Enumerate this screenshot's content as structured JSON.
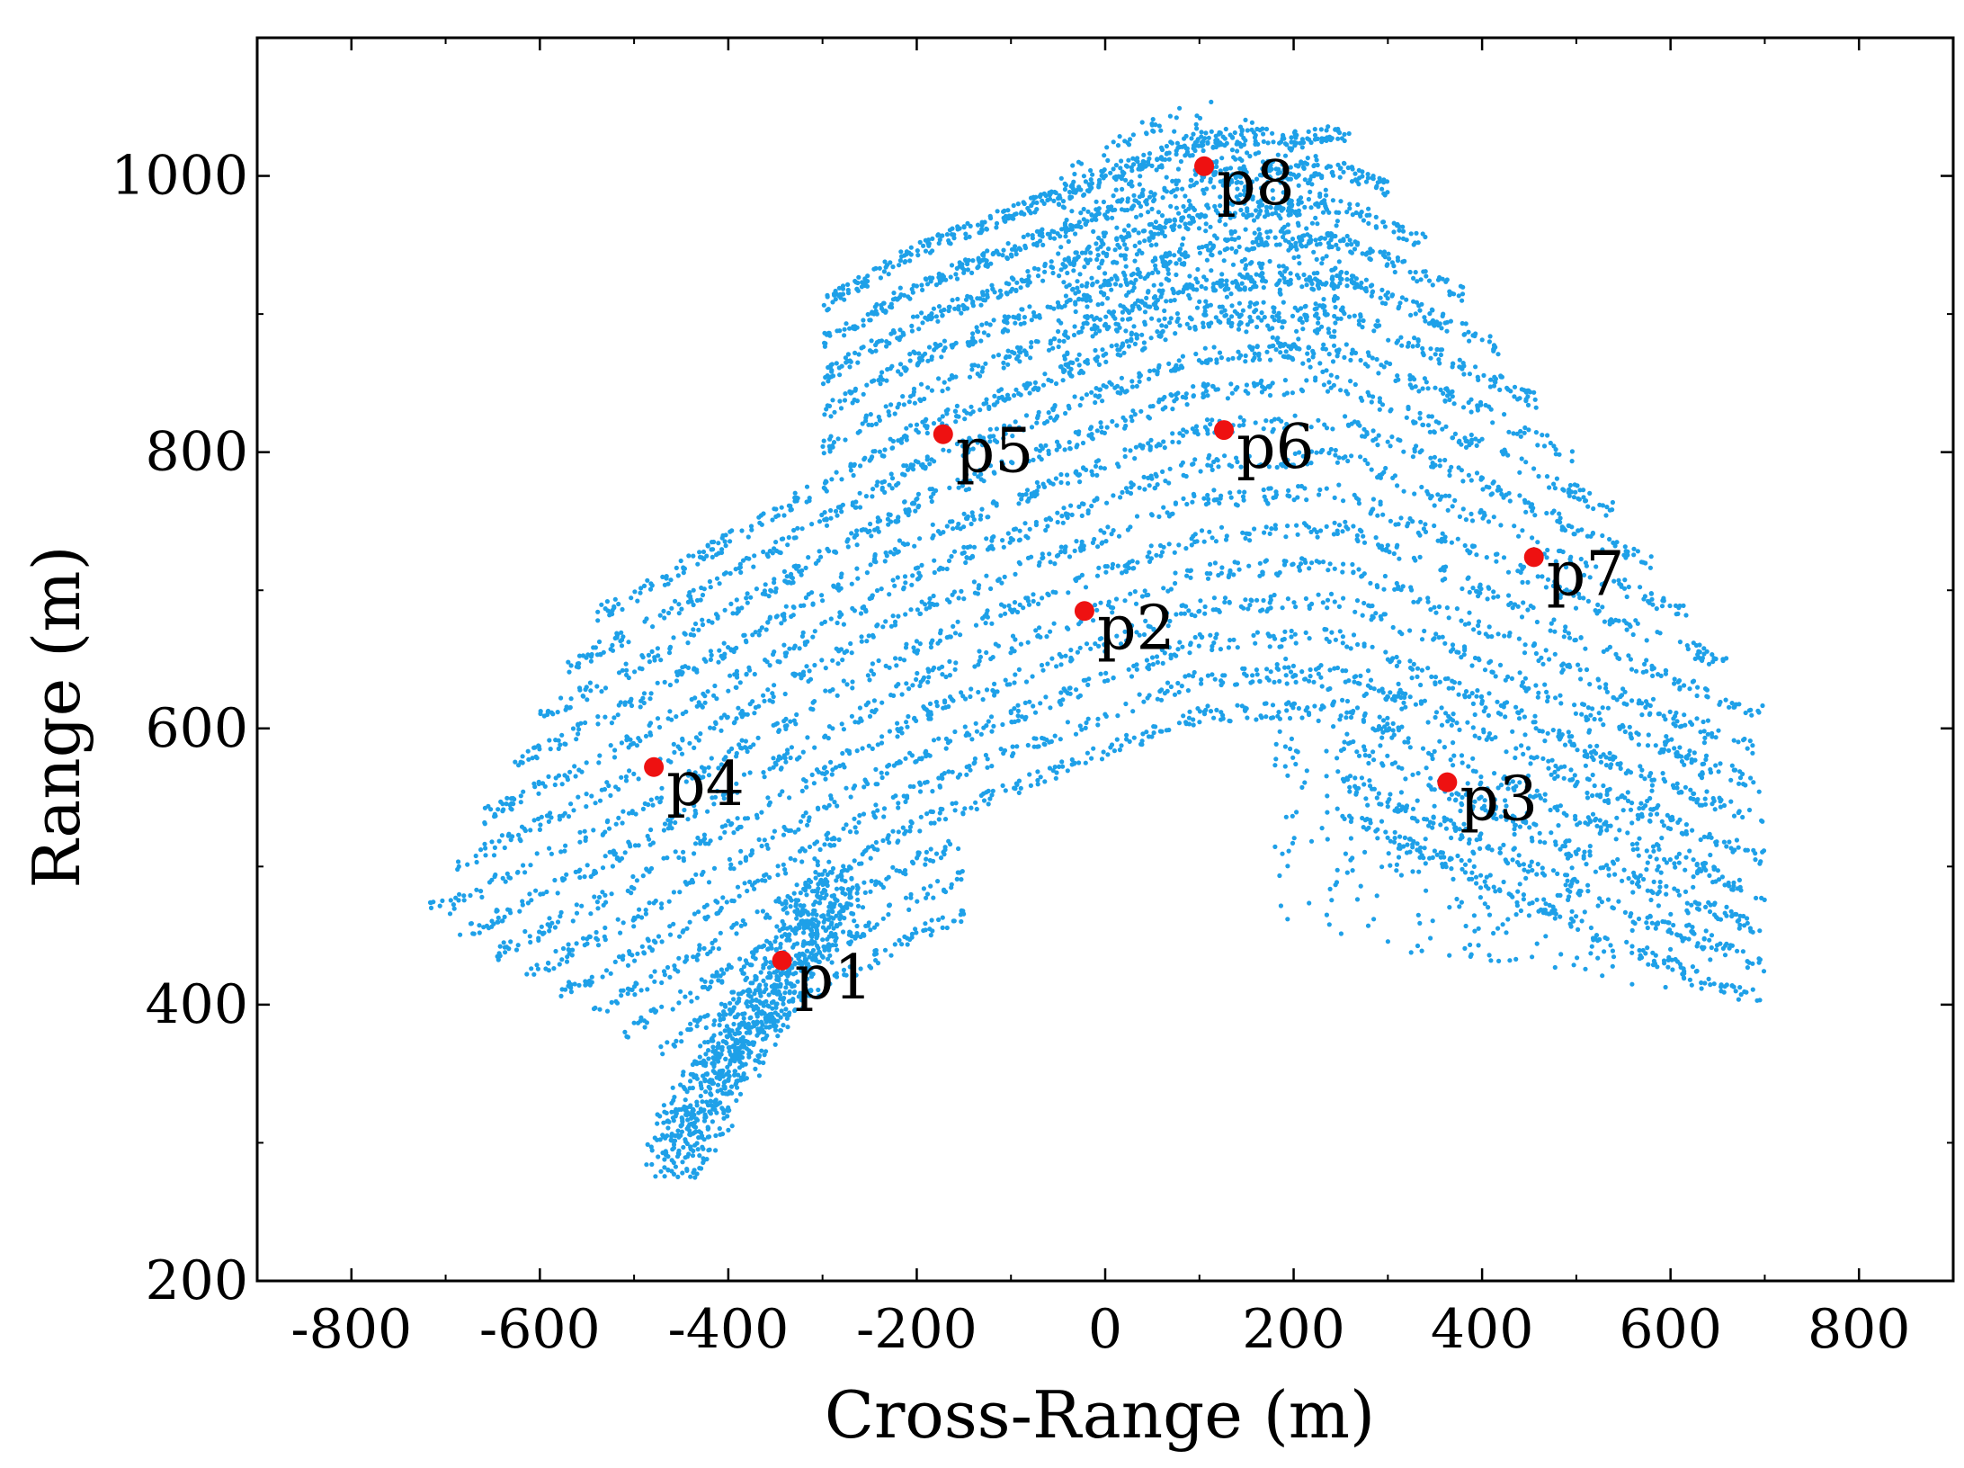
{
  "chart_data": {
    "type": "scatter",
    "title": "",
    "xlabel": "Cross-Range (m)",
    "ylabel": "Range (m)",
    "xlim": [
      -900,
      900
    ],
    "ylim": [
      200,
      1100
    ],
    "xticks": [
      -800,
      -600,
      -400,
      -200,
      0,
      200,
      400,
      600,
      800
    ],
    "xtick_labels": [
      "-800",
      "-600",
      "-400",
      "-200",
      "0",
      "200",
      "400",
      "600",
      "800"
    ],
    "yticks": [
      200,
      400,
      600,
      800,
      1000
    ],
    "ytick_labels": [
      "200",
      "400",
      "600",
      "800",
      "1000"
    ],
    "grid": false,
    "legend": "none",
    "colors": {
      "point_cloud": "#1ea0e8",
      "marked_points": "#ee1111"
    },
    "series": [
      {
        "description": "dense blue point cloud forming curved terraced bands; approximate extents",
        "point_cloud_region": {
          "x_range": [
            -730,
            760
          ],
          "y_range": [
            280,
            1070
          ]
        }
      }
    ],
    "points": [
      {
        "label": "p1",
        "x": -343,
        "y": 432
      },
      {
        "label": "p2",
        "x": -22,
        "y": 685
      },
      {
        "label": "p3",
        "x": 363,
        "y": 561
      },
      {
        "label": "p4",
        "x": -479,
        "y": 572
      },
      {
        "label": "p5",
        "x": -172,
        "y": 813
      },
      {
        "label": "p6",
        "x": 126,
        "y": 816
      },
      {
        "label": "p7",
        "x": 455,
        "y": 724
      },
      {
        "label": "p8",
        "x": 105,
        "y": 1007
      }
    ]
  }
}
